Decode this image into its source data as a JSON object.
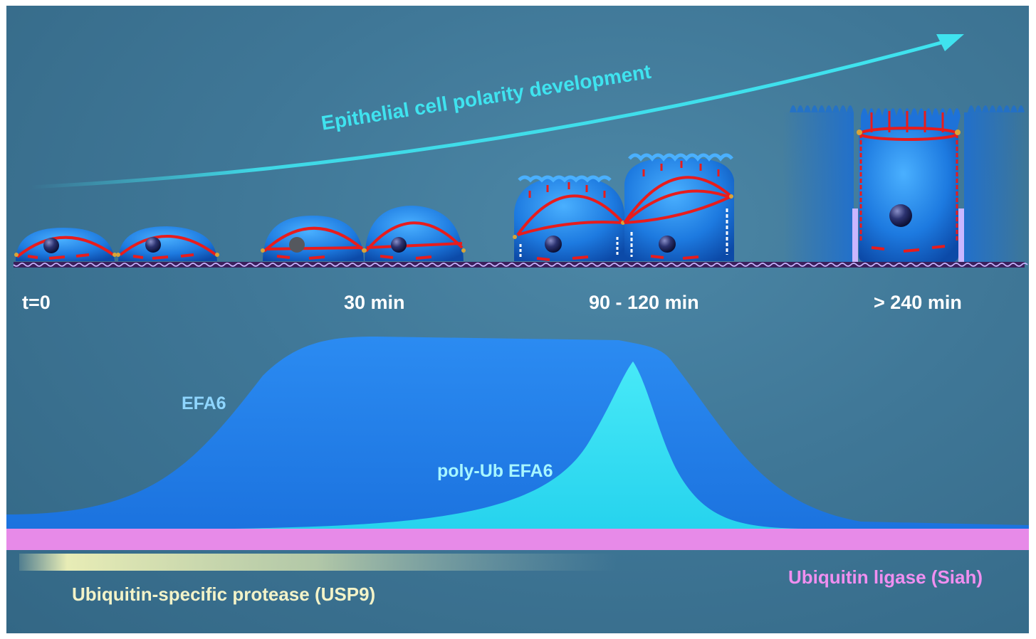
{
  "title": "Epithelial cell polarity development",
  "time_labels": [
    "t=0",
    "30 min",
    "90 - 120 min",
    "> 240 min"
  ],
  "curves": {
    "efa6": "EFA6",
    "poly_ub": "poly-Ub EFA6"
  },
  "enzymes": {
    "protease": "Ubiquitin-specific protease (USP9)",
    "ligase": "Ubiquitin ligase (Siah)"
  },
  "colors": {
    "background": "#3f7797",
    "arrow": "#3fe3ef",
    "cell": "#1d7ae0",
    "junction": "#e81c1c",
    "efa6_area": "#1e80ee",
    "poly_ub_area": "#39e8f2",
    "ligase_bar": "#e78ae8",
    "protease_gradient": "#f1f3b8"
  },
  "icons": [
    "cell-icon",
    "nucleus-icon",
    "substrate-icon",
    "progress-arrow-icon"
  ]
}
